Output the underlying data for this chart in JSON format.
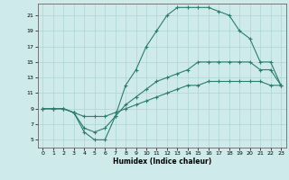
{
  "xlabel": "Humidex (Indice chaleur)",
  "bg_color": "#ceeaea",
  "grid_color": "#add4d4",
  "line_color": "#2d7d6e",
  "xlim": [
    -0.5,
    23.5
  ],
  "ylim": [
    4,
    22.5
  ],
  "xticks": [
    0,
    1,
    2,
    3,
    4,
    5,
    6,
    7,
    8,
    9,
    10,
    11,
    12,
    13,
    14,
    15,
    16,
    17,
    18,
    19,
    20,
    21,
    22,
    23
  ],
  "yticks": [
    5,
    7,
    9,
    11,
    13,
    15,
    17,
    19,
    21
  ],
  "curve1_x": [
    0,
    1,
    2,
    3,
    4,
    5,
    6,
    7,
    8,
    9,
    10,
    11,
    12,
    13,
    14,
    15,
    16,
    17,
    18,
    19,
    20,
    21,
    22,
    23
  ],
  "curve1_y": [
    9,
    9,
    9,
    8.5,
    6,
    5,
    5,
    8,
    12,
    14,
    17,
    19,
    21,
    22,
    22,
    22,
    22,
    21.5,
    21,
    19,
    18,
    15,
    15,
    12
  ],
  "curve2_x": [
    0,
    1,
    2,
    3,
    4,
    5,
    6,
    7,
    8,
    9,
    10,
    11,
    12,
    13,
    14,
    15,
    16,
    17,
    18,
    19,
    20,
    21,
    22,
    23
  ],
  "curve2_y": [
    9,
    9,
    9,
    8.5,
    6.5,
    6,
    6.5,
    8,
    9.5,
    10.5,
    11.5,
    12.5,
    13,
    13.5,
    14,
    15,
    15,
    15,
    15,
    15,
    15,
    14,
    14,
    12
  ],
  "curve3_x": [
    0,
    1,
    2,
    3,
    4,
    5,
    6,
    7,
    8,
    9,
    10,
    11,
    12,
    13,
    14,
    15,
    16,
    17,
    18,
    19,
    20,
    21,
    22,
    23
  ],
  "curve3_y": [
    9,
    9,
    9,
    8.5,
    8,
    8,
    8,
    8.5,
    9,
    9.5,
    10,
    10.5,
    11,
    11.5,
    12,
    12,
    12.5,
    12.5,
    12.5,
    12.5,
    12.5,
    12.5,
    12,
    12
  ]
}
